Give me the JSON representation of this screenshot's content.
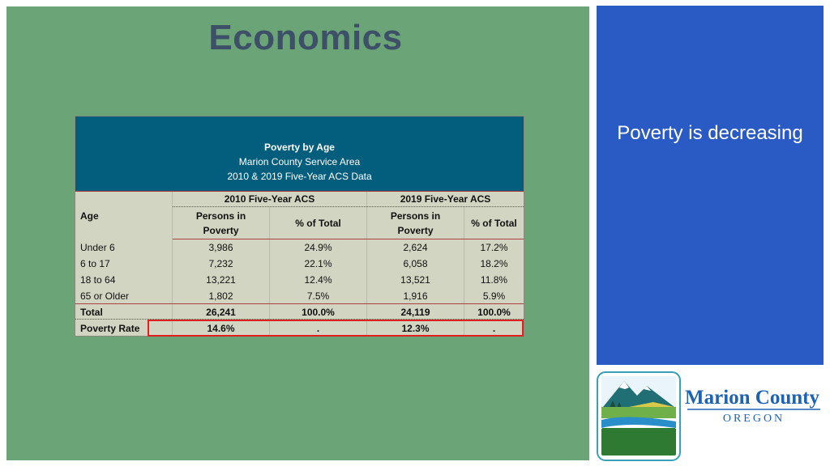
{
  "slide": {
    "title": "Economics",
    "sidebar_text": "Poverty is decreasing"
  },
  "table": {
    "title": "Poverty by Age",
    "subtitle": "Marion County Service Area",
    "source": "2010 & 2019 Five-Year ACS Data",
    "age_header": "Age",
    "group_2010": "2010 Five-Year ACS",
    "group_2019": "2019 Five-Year ACS",
    "col_persons_line1": "Persons in",
    "col_persons_line2": "Poverty",
    "col_pct": "% of Total",
    "rows": [
      {
        "age": "Under 6",
        "p2010": "3,986",
        "pct2010": "24.9%",
        "p2019": "2,624",
        "pct2019": "17.2%"
      },
      {
        "age": "6 to 17",
        "p2010": "7,232",
        "pct2010": "22.1%",
        "p2019": "6,058",
        "pct2019": "18.2%"
      },
      {
        "age": "18 to 64",
        "p2010": "13,221",
        "pct2010": "12.4%",
        "p2019": "13,521",
        "pct2019": "11.8%"
      },
      {
        "age": "65 or Older",
        "p2010": "1,802",
        "pct2010": "7.5%",
        "p2019": "1,916",
        "pct2019": "5.9%"
      }
    ],
    "total": {
      "age": "Total",
      "p2010": "26,241",
      "pct2010": "100.0%",
      "p2019": "24,119",
      "pct2019": "100.0%"
    },
    "rate": {
      "age": "Poverty Rate",
      "p2010": "14.6%",
      "pct2010": ".",
      "p2019": "12.3%",
      "pct2019": "."
    }
  },
  "logo": {
    "line1": "Marion County",
    "line2": "OREGON"
  },
  "colors": {
    "slide_bg": "#6aa477",
    "table_header": "#035d7d",
    "sidebar": "#2a5bc4",
    "highlight": "#e02020"
  }
}
